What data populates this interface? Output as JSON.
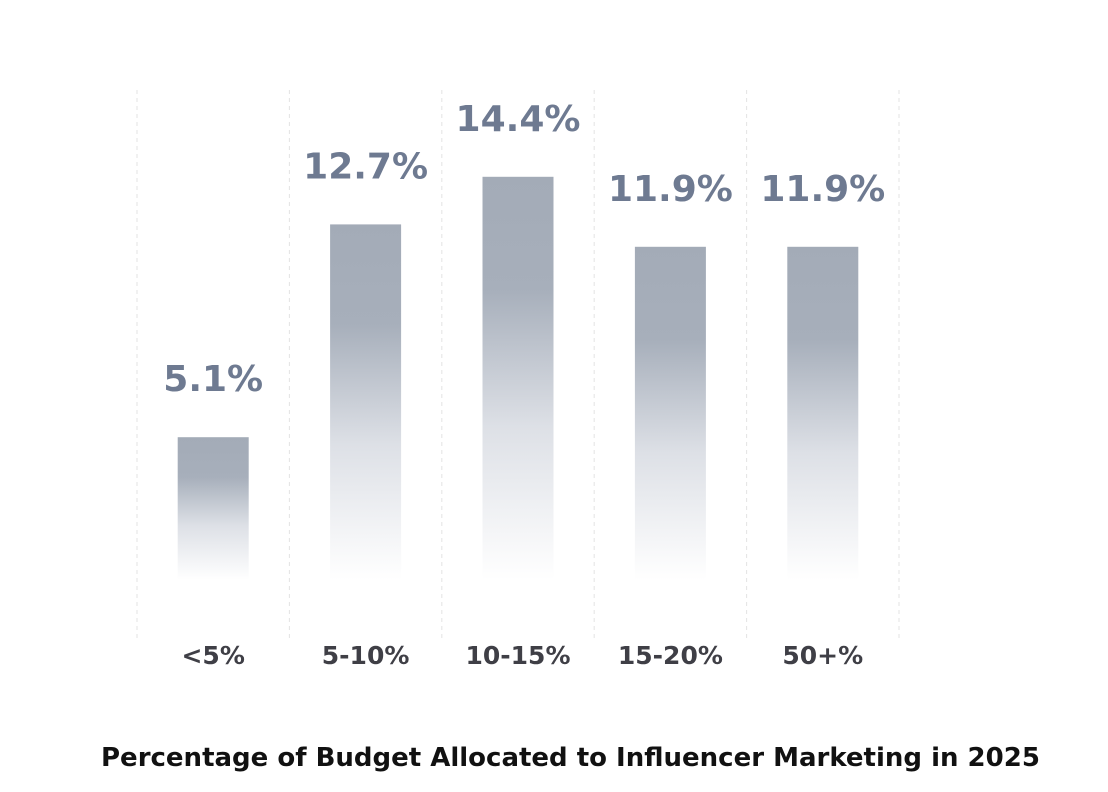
{
  "chart_data": {
    "type": "bar",
    "title": "Percentage of Budget Allocated to Influencer Marketing in 2025",
    "categories": [
      "<5%",
      "5-10%",
      "10-15%",
      "15-20%",
      "50+%"
    ],
    "values": [
      5.1,
      12.7,
      14.4,
      11.9,
      11.9
    ],
    "value_labels": [
      "5.1%",
      "12.7%",
      "14.4%",
      "11.9%",
      "11.9%"
    ],
    "xlabel": "",
    "ylabel": "",
    "ylim": [
      0,
      18
    ],
    "grid": "vertical dashed separators",
    "legend": "none",
    "colors": {
      "bar_top": "#a3abb7",
      "bar_bottom": "#ffffff",
      "value_label": "#6e7a91",
      "tick_label": "#3f3f46",
      "title": "#111111"
    }
  }
}
